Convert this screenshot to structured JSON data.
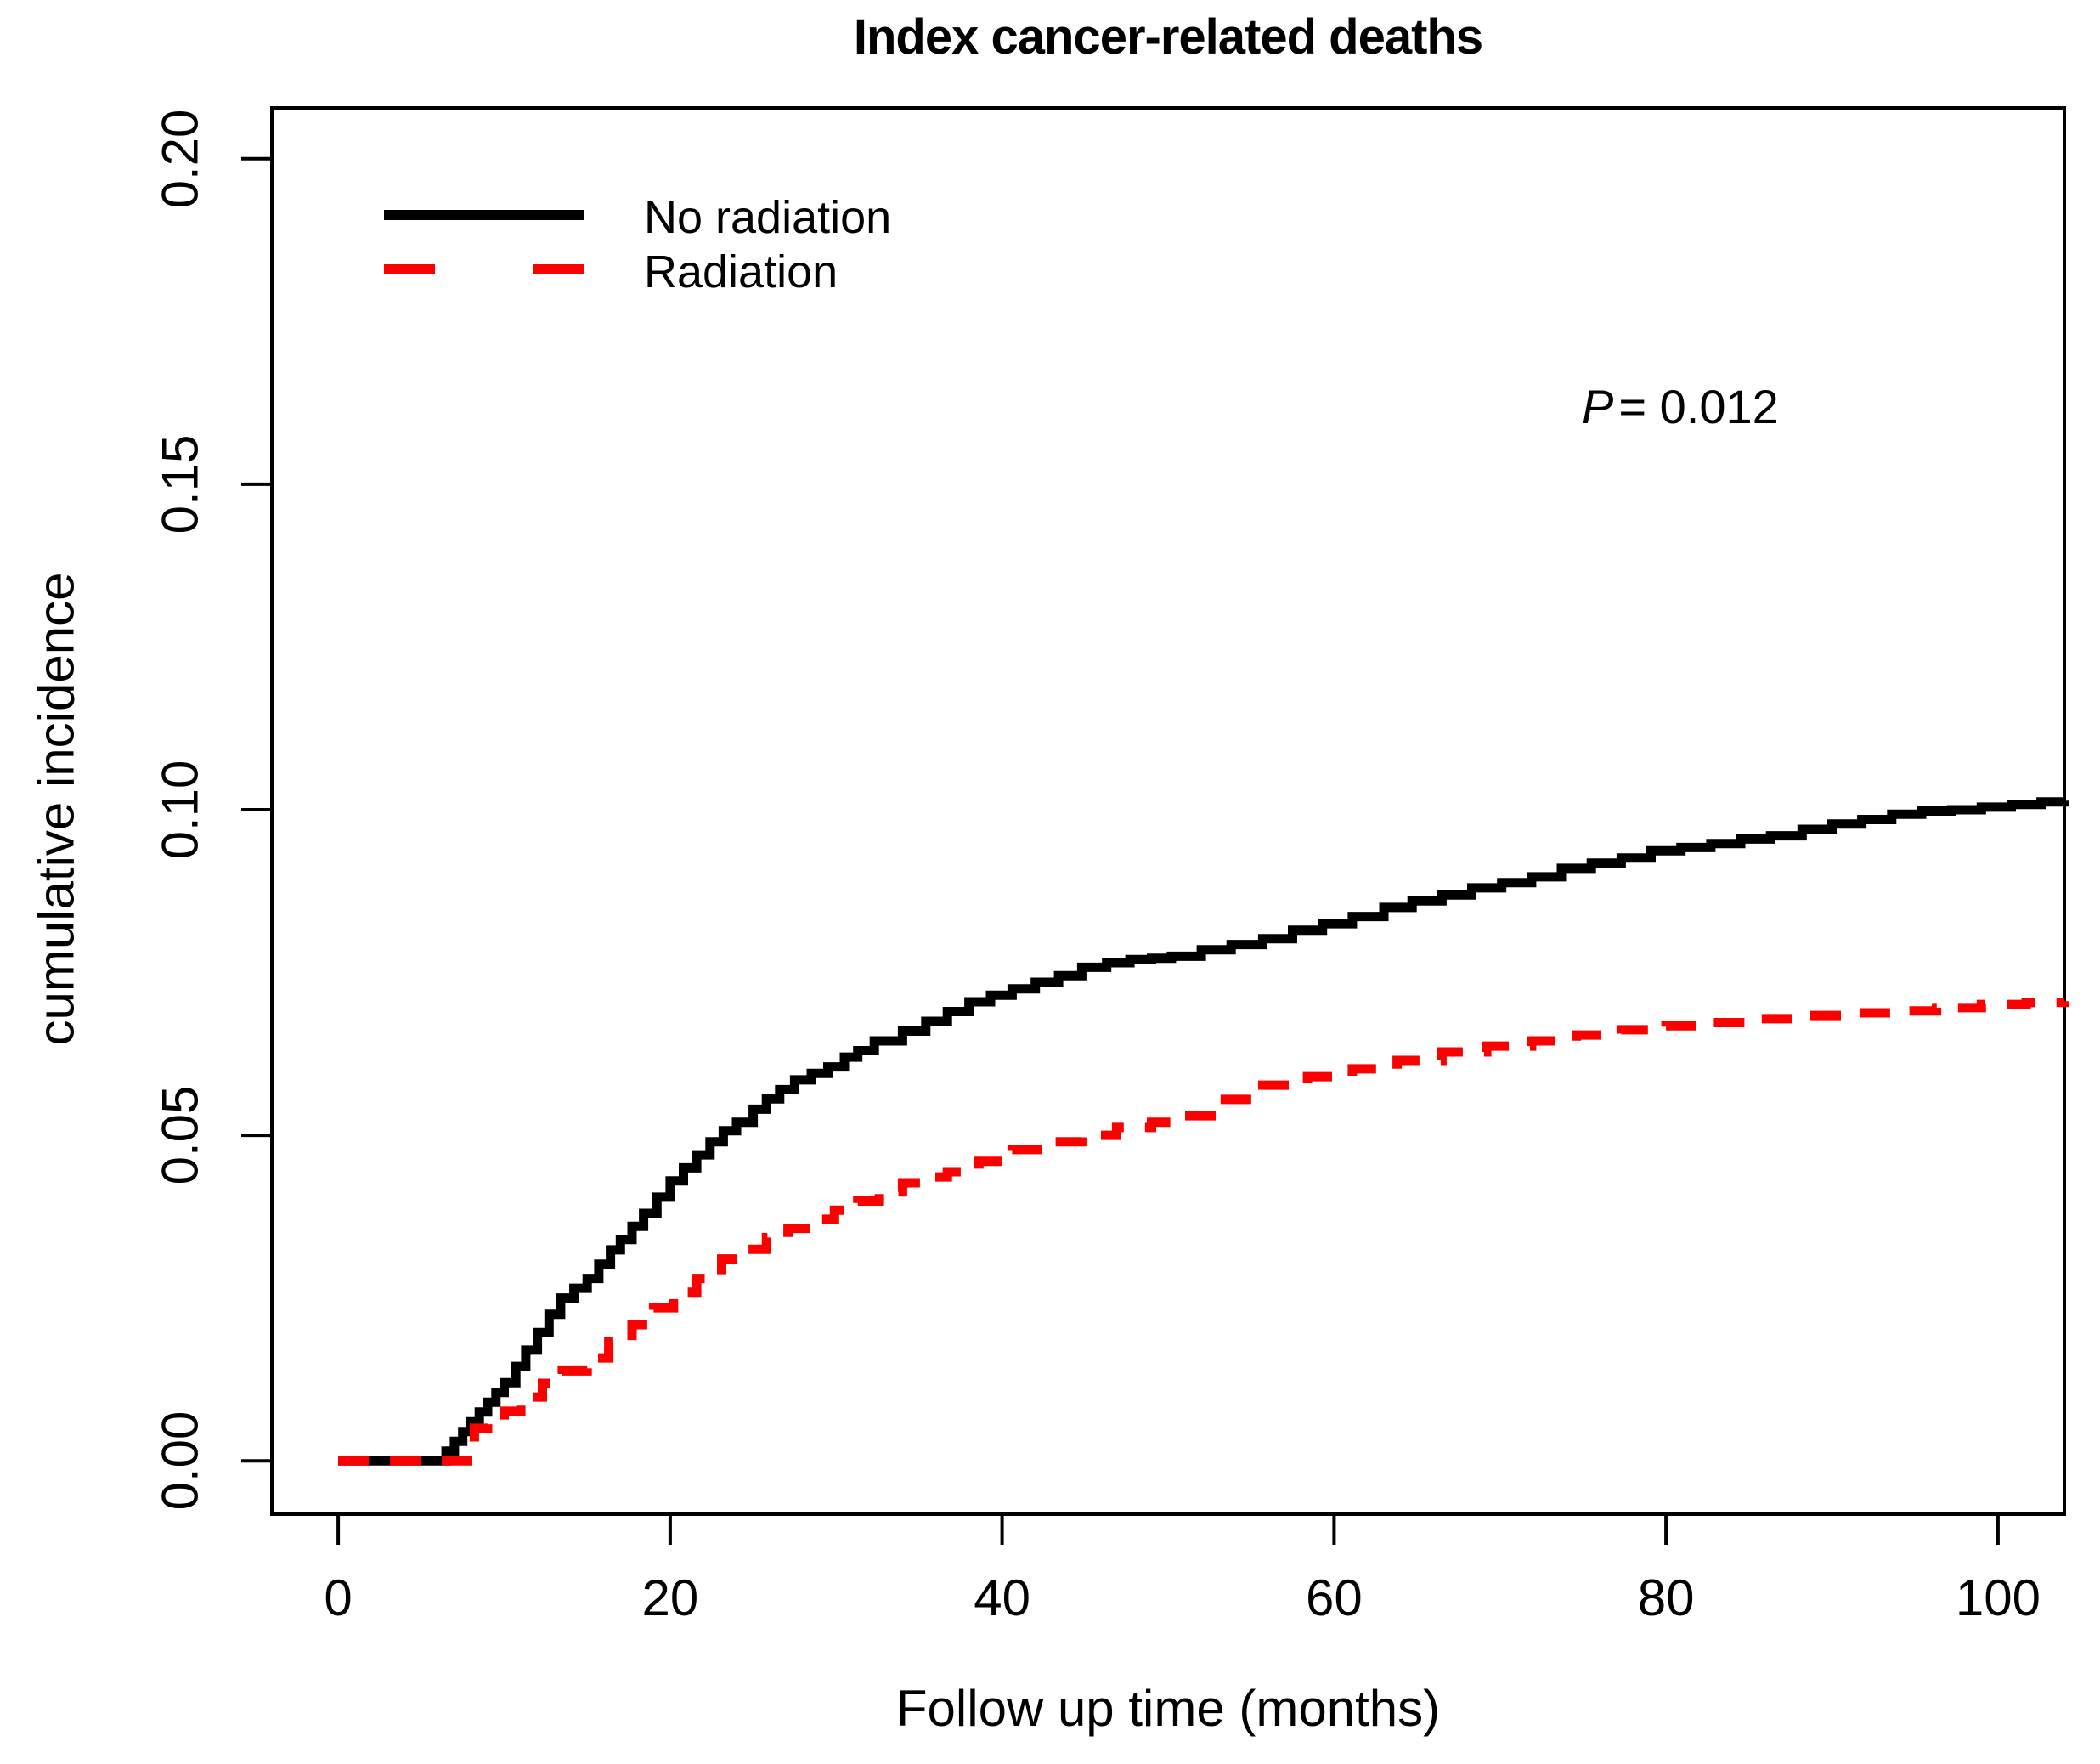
{
  "chart_data": {
    "type": "line",
    "subtype": "step-cumulative-incidence",
    "title": "Index cancer-related deaths",
    "xlabel": "Follow up time (months)",
    "ylabel": "cumulative incidence",
    "xlim": [
      -4,
      104
    ],
    "ylim": [
      -0.0082,
      0.2078
    ],
    "x_ticks": [
      0,
      20,
      40,
      60,
      80,
      100
    ],
    "x_tick_labels": [
      "0",
      "20",
      "40",
      "60",
      "80",
      "100"
    ],
    "y_ticks": [
      0.0,
      0.05,
      0.1,
      0.15,
      0.2
    ],
    "y_tick_labels": [
      "0.00",
      "0.05",
      "0.10",
      "0.15",
      "0.20"
    ],
    "grid": false,
    "legend_position": "top-left",
    "annotation": {
      "text_italic": "P",
      "text_rest": "= 0.012"
    },
    "series": [
      {
        "name": "No radiation",
        "color": "#000000",
        "style": "solid",
        "points": [
          [
            0,
            0
          ],
          [
            6,
            0
          ],
          [
            6.5,
            0.0015
          ],
          [
            7,
            0.003
          ],
          [
            7.5,
            0.0045
          ],
          [
            8,
            0.006
          ],
          [
            8.5,
            0.0075
          ],
          [
            9,
            0.009
          ],
          [
            9.5,
            0.0105
          ],
          [
            10,
            0.012
          ],
          [
            10.7,
            0.0145
          ],
          [
            11.3,
            0.017
          ],
          [
            12,
            0.0197
          ],
          [
            12.7,
            0.0225
          ],
          [
            13.4,
            0.025
          ],
          [
            14.2,
            0.0265
          ],
          [
            15,
            0.028
          ],
          [
            15.7,
            0.0302
          ],
          [
            16.4,
            0.0324
          ],
          [
            17,
            0.034
          ],
          [
            17.7,
            0.036
          ],
          [
            18.4,
            0.038
          ],
          [
            19.2,
            0.0405
          ],
          [
            20,
            0.043
          ],
          [
            20.8,
            0.045
          ],
          [
            21.6,
            0.047
          ],
          [
            22.4,
            0.049
          ],
          [
            23.2,
            0.0507
          ],
          [
            24,
            0.052
          ],
          [
            25,
            0.054
          ],
          [
            25.8,
            0.0556
          ],
          [
            26.6,
            0.057
          ],
          [
            27.5,
            0.0585
          ],
          [
            28.5,
            0.0595
          ],
          [
            29.5,
            0.0605
          ],
          [
            30.5,
            0.062
          ],
          [
            31.3,
            0.063
          ],
          [
            32.3,
            0.0645
          ],
          [
            34,
            0.066
          ],
          [
            35.4,
            0.0675
          ],
          [
            36.7,
            0.069
          ],
          [
            38,
            0.0705
          ],
          [
            39.3,
            0.0715
          ],
          [
            40.6,
            0.0725
          ],
          [
            42,
            0.0735
          ],
          [
            43.4,
            0.0745
          ],
          [
            44.8,
            0.0758
          ],
          [
            46.3,
            0.0765
          ],
          [
            47.7,
            0.077
          ],
          [
            49,
            0.0772
          ],
          [
            50.2,
            0.0775
          ],
          [
            52,
            0.0785
          ],
          [
            53.8,
            0.0793
          ],
          [
            55.7,
            0.0802
          ],
          [
            57.5,
            0.0815
          ],
          [
            59.3,
            0.0825
          ],
          [
            61.1,
            0.0836
          ],
          [
            63,
            0.085
          ],
          [
            64.7,
            0.086
          ],
          [
            66.5,
            0.0869
          ],
          [
            68.3,
            0.088
          ],
          [
            70.1,
            0.0888
          ],
          [
            71.9,
            0.0897
          ],
          [
            73.7,
            0.091
          ],
          [
            75.5,
            0.0918
          ],
          [
            77.3,
            0.0926
          ],
          [
            79.1,
            0.0937
          ],
          [
            80.9,
            0.0942
          ],
          [
            82.7,
            0.0948
          ],
          [
            84.5,
            0.0955
          ],
          [
            86.3,
            0.096
          ],
          [
            88.2,
            0.097
          ],
          [
            90,
            0.0978
          ],
          [
            91.8,
            0.0985
          ],
          [
            93.6,
            0.0993
          ],
          [
            95.4,
            0.0998
          ],
          [
            97.2,
            0.1
          ],
          [
            99,
            0.1004
          ],
          [
            100.8,
            0.1008
          ],
          [
            102.6,
            0.1012
          ],
          [
            104,
            0.1014
          ]
        ]
      },
      {
        "name": "Radiation",
        "color": "#fa0100",
        "style": "dashed",
        "points": [
          [
            0,
            0
          ],
          [
            7.4,
            0
          ],
          [
            7.8,
            0.0025
          ],
          [
            8.2,
            0.005
          ],
          [
            9,
            0.006
          ],
          [
            10,
            0.0076
          ],
          [
            11,
            0.0098
          ],
          [
            12.3,
            0.0119
          ],
          [
            13.5,
            0.0138
          ],
          [
            15,
            0.0158
          ],
          [
            16.3,
            0.0183
          ],
          [
            17.7,
            0.0209
          ],
          [
            19,
            0.0235
          ],
          [
            20.2,
            0.0259
          ],
          [
            21.6,
            0.028
          ],
          [
            23.1,
            0.031
          ],
          [
            24.4,
            0.0325
          ],
          [
            25.8,
            0.0343
          ],
          [
            27.1,
            0.0357
          ],
          [
            28.5,
            0.0371
          ],
          [
            29.9,
            0.0385
          ],
          [
            31.3,
            0.0399
          ],
          [
            32.6,
            0.0413
          ],
          [
            34,
            0.0427
          ],
          [
            35.4,
            0.0436
          ],
          [
            36.7,
            0.0444
          ],
          [
            38.6,
            0.046
          ],
          [
            40.6,
            0.0478
          ],
          [
            42.7,
            0.049
          ],
          [
            44.8,
            0.05
          ],
          [
            46.9,
            0.0512
          ],
          [
            49,
            0.052
          ],
          [
            50.2,
            0.053
          ],
          [
            52.9,
            0.0555
          ],
          [
            55.7,
            0.0577
          ],
          [
            58.4,
            0.059
          ],
          [
            61.1,
            0.0602
          ],
          [
            63.8,
            0.0615
          ],
          [
            66.5,
            0.0628
          ],
          [
            69.2,
            0.0637
          ],
          [
            71.9,
            0.0645
          ],
          [
            74.6,
            0.0654
          ],
          [
            77.3,
            0.0662
          ],
          [
            80,
            0.0668
          ],
          [
            82.7,
            0.0673
          ],
          [
            85.4,
            0.0679
          ],
          [
            88.2,
            0.0684
          ],
          [
            90.9,
            0.0688
          ],
          [
            93.6,
            0.0691
          ],
          [
            96.3,
            0.0696
          ],
          [
            99,
            0.0701
          ],
          [
            101.7,
            0.0704
          ],
          [
            104,
            0.0706
          ]
        ]
      }
    ]
  }
}
